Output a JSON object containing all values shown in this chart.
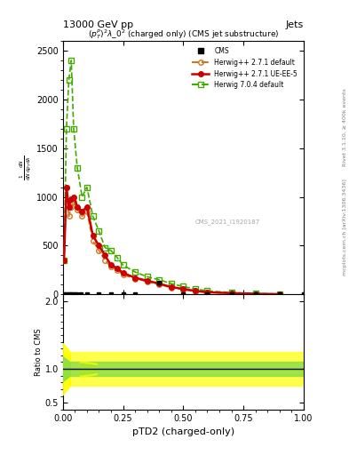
{
  "title_top": "13000 GeV pp",
  "title_right": "Jets",
  "plot_title": "$(p_T^P)^2\\lambda\\_0^2$ (charged only) (CMS jet substructure)",
  "xlabel": "pTD2 (charged-only)",
  "ylabel_ratio": "Ratio to CMS",
  "right_label": "Rivet 3.1.10, ≥ 400k events",
  "right_label2": "mcplots.cern.ch [arXiv:1306.3436]",
  "watermark": "CMS_2021_I1920187",
  "cms_x": [
    0.005,
    0.015,
    0.025,
    0.035,
    0.045,
    0.055,
    0.075,
    0.1,
    0.15,
    0.2,
    0.25,
    0.3,
    0.4,
    0.5,
    0.6,
    0.7,
    0.8,
    0.9,
    1.0
  ],
  "cms_y": [
    0,
    0,
    0,
    0,
    0,
    0,
    0,
    0,
    0,
    0,
    0,
    0,
    120,
    0,
    0,
    0,
    0,
    0,
    0
  ],
  "herwig271_x": [
    0.005,
    0.015,
    0.025,
    0.035,
    0.045,
    0.06,
    0.08,
    0.1,
    0.125,
    0.15,
    0.175,
    0.2,
    0.225,
    0.25,
    0.3,
    0.35,
    0.4,
    0.45,
    0.5,
    0.55,
    0.6,
    0.7,
    0.8,
    0.9
  ],
  "herwig271_y": [
    350,
    1100,
    800,
    900,
    950,
    870,
    800,
    850,
    550,
    450,
    350,
    280,
    250,
    200,
    160,
    130,
    100,
    70,
    50,
    30,
    20,
    10,
    5,
    2
  ],
  "herwig271ue_x": [
    0.005,
    0.015,
    0.025,
    0.035,
    0.045,
    0.06,
    0.08,
    0.1,
    0.125,
    0.15,
    0.175,
    0.2,
    0.225,
    0.25,
    0.3,
    0.35,
    0.4,
    0.45,
    0.5,
    0.55,
    0.6,
    0.7,
    0.8,
    0.9
  ],
  "herwig271ue_y": [
    350,
    1100,
    900,
    980,
    1000,
    900,
    850,
    900,
    600,
    500,
    400,
    300,
    270,
    220,
    170,
    140,
    110,
    75,
    55,
    35,
    22,
    12,
    6,
    2
  ],
  "herwig704_x": [
    0.005,
    0.015,
    0.025,
    0.035,
    0.045,
    0.06,
    0.08,
    0.1,
    0.125,
    0.15,
    0.175,
    0.2,
    0.225,
    0.25,
    0.3,
    0.35,
    0.4,
    0.45,
    0.5,
    0.55,
    0.6,
    0.7,
    0.8,
    0.9
  ],
  "herwig704_y": [
    350,
    1700,
    2200,
    2400,
    1700,
    1300,
    1000,
    1100,
    800,
    650,
    480,
    450,
    380,
    300,
    230,
    180,
    150,
    110,
    80,
    55,
    35,
    18,
    8,
    3
  ],
  "color_herwig271": "#cc7722",
  "color_herwig271ue": "#cc0000",
  "color_herwig704": "#44aa00",
  "color_cms": "#000000",
  "ylim_main": [
    0,
    2600
  ],
  "ylim_ratio": [
    0.4,
    2.1
  ],
  "xlim": [
    0.0,
    1.0
  ]
}
